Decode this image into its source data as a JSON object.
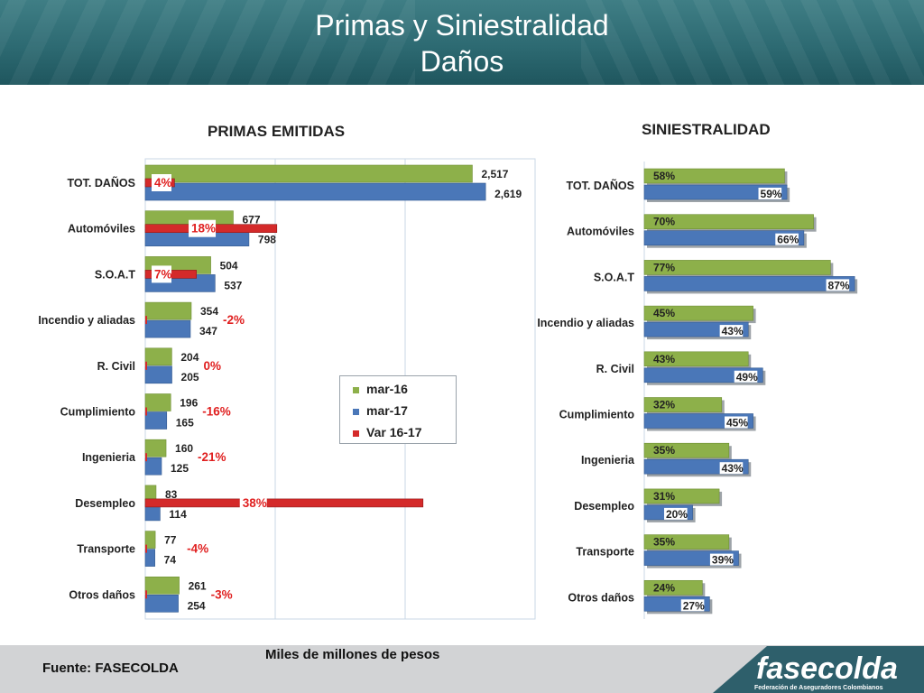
{
  "header": {
    "title_line1": "Primas y Siniestralidad",
    "title_line2": "Daños"
  },
  "footer": {
    "source": "Fuente: FASECOLDA",
    "units": "Miles de millones de pesos",
    "logo_text": "fasecolda",
    "logo_subtext": "Federación de Aseguradores Colombianos"
  },
  "legend": {
    "items": [
      "mar-16",
      "mar-17",
      "Var 16-17"
    ]
  },
  "colors": {
    "mar16": "#8db04a",
    "mar17": "#4a77b8",
    "var": "#d42a2a",
    "var_text": "#e02020",
    "grid": "#c9d7e6"
  },
  "chart_data": [
    {
      "type": "bar",
      "orientation": "horizontal",
      "title": "PRIMAS EMITIDAS",
      "categories": [
        "TOT. DAÑOS",
        "Automóviles",
        "S.O.A.T",
        "Incendio y aliadas",
        "R. Civil",
        "Cumplimiento",
        "Ingenieria",
        "Desempleo",
        "Transporte",
        "Otros daños"
      ],
      "series": [
        {
          "name": "mar-16",
          "values": [
            2517,
            677,
            504,
            354,
            204,
            196,
            160,
            83,
            77,
            261
          ],
          "labels": [
            "2,517",
            "677",
            "504",
            "354",
            "204",
            "196",
            "160",
            "83",
            "77",
            "261"
          ]
        },
        {
          "name": "mar-17",
          "values": [
            2619,
            798,
            537,
            347,
            205,
            165,
            125,
            114,
            74,
            254
          ],
          "labels": [
            "2,619",
            "798",
            "537",
            "347",
            "205",
            "165",
            "125",
            "114",
            "74",
            "254"
          ]
        },
        {
          "name": "Var 16-17",
          "values": [
            4,
            18,
            7,
            -2,
            0,
            -16,
            -21,
            38,
            -4,
            -3
          ],
          "labels": [
            "4%",
            "18%",
            "7%",
            "-2%",
            "0%",
            "-16%",
            "-21%",
            "38%",
            "-4%",
            "-3%"
          ]
        }
      ],
      "grid": true,
      "legend_position": "center-right"
    },
    {
      "type": "bar",
      "orientation": "horizontal",
      "title": "SINIESTRALIDAD",
      "categories": [
        "TOT. DAÑOS",
        "Automóviles",
        "S.O.A.T",
        "Incendio y aliadas",
        "R. Civil",
        "Cumplimiento",
        "Ingenieria",
        "Desempleo",
        "Transporte",
        "Otros daños"
      ],
      "series": [
        {
          "name": "mar-16",
          "values": [
            58,
            70,
            77,
            45,
            43,
            32,
            35,
            31,
            35,
            24
          ],
          "labels": [
            "58%",
            "70%",
            "77%",
            "45%",
            "43%",
            "32%",
            "35%",
            "31%",
            "35%",
            "24%"
          ]
        },
        {
          "name": "mar-17",
          "values": [
            59,
            66,
            87,
            43,
            49,
            45,
            43,
            20,
            39,
            27
          ],
          "labels": [
            "59%",
            "66%",
            "87%",
            "43%",
            "49%",
            "45%",
            "43%",
            "20%",
            "39%",
            "27%"
          ]
        }
      ],
      "grid": false
    }
  ]
}
